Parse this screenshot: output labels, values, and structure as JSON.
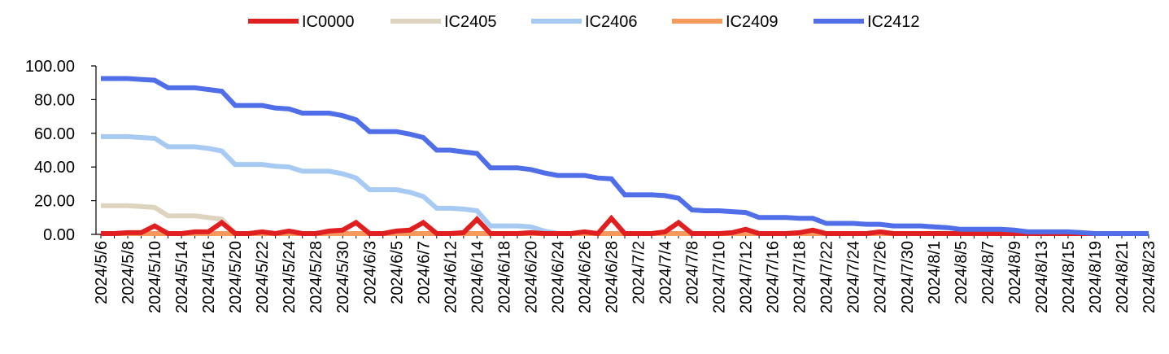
{
  "chart_data": {
    "type": "line",
    "title": "",
    "xlabel": "",
    "ylabel": "",
    "ylim": [
      0,
      100
    ],
    "yticks": [
      "0.00",
      "20.00",
      "40.00",
      "60.00",
      "80.00",
      "100.00"
    ],
    "grid": false,
    "legend_position": "top-center",
    "x": [
      "2024/5/6",
      "2024/5/7",
      "2024/5/8",
      "2024/5/9",
      "2024/5/10",
      "2024/5/13",
      "2024/5/14",
      "2024/5/15",
      "2024/5/16",
      "2024/5/17",
      "2024/5/20",
      "2024/5/21",
      "2024/5/22",
      "2024/5/23",
      "2024/5/24",
      "2024/5/27",
      "2024/5/28",
      "2024/5/29",
      "2024/5/30",
      "2024/5/31",
      "2024/6/3",
      "2024/6/4",
      "2024/6/5",
      "2024/6/6",
      "2024/6/7",
      "2024/6/11",
      "2024/6/12",
      "2024/6/13",
      "2024/6/14",
      "2024/6/17",
      "2024/6/18",
      "2024/6/19",
      "2024/6/20",
      "2024/6/21",
      "2024/6/24",
      "2024/6/25",
      "2024/6/26",
      "2024/6/27",
      "2024/6/28",
      "2024/7/1",
      "2024/7/2",
      "2024/7/3",
      "2024/7/4",
      "2024/7/5",
      "2024/7/8",
      "2024/7/9",
      "2024/7/10",
      "2024/7/11",
      "2024/7/12",
      "2024/7/15",
      "2024/7/16",
      "2024/7/17",
      "2024/7/18",
      "2024/7/19",
      "2024/7/22",
      "2024/7/23",
      "2024/7/24",
      "2024/7/25",
      "2024/7/26",
      "2024/7/29",
      "2024/7/30",
      "2024/7/31",
      "2024/8/1",
      "2024/8/2",
      "2024/8/5",
      "2024/8/6",
      "2024/8/7",
      "2024/8/8",
      "2024/8/9",
      "2024/8/12",
      "2024/8/13",
      "2024/8/14",
      "2024/8/15",
      "2024/8/16",
      "2024/8/19",
      "2024/8/20",
      "2024/8/21",
      "2024/8/22",
      "2024/8/23"
    ],
    "xtick_labels": [
      "2024/5/6",
      "2024/5/8",
      "2024/5/10",
      "2024/5/14",
      "2024/5/16",
      "2024/5/20",
      "2024/5/22",
      "2024/5/24",
      "2024/5/28",
      "2024/5/30",
      "2024/6/3",
      "2024/6/5",
      "2024/6/7",
      "2024/6/12",
      "2024/6/14",
      "2024/6/18",
      "2024/6/20",
      "2024/6/24",
      "2024/6/26",
      "2024/6/28",
      "2024/7/2",
      "2024/7/4",
      "2024/7/8",
      "2024/7/10",
      "2024/7/12",
      "2024/7/16",
      "2024/7/18",
      "2024/7/22",
      "2024/7/24",
      "2024/7/26",
      "2024/7/30",
      "2024/8/1",
      "2024/8/5",
      "2024/8/7",
      "2024/8/9",
      "2024/8/13",
      "2024/8/15",
      "2024/8/19",
      "2024/8/21",
      "2024/8/23"
    ],
    "series": [
      {
        "name": "IC0000",
        "color": "#e02020",
        "values": [
          0.5,
          0.5,
          1,
          1,
          5,
          0.5,
          0.5,
          1.5,
          1.5,
          7,
          0.5,
          0.5,
          1.5,
          0.5,
          2,
          0.5,
          0.5,
          2,
          2.5,
          7,
          0.5,
          0.5,
          2,
          2.5,
          7,
          0.5,
          0.5,
          1,
          9,
          0.5,
          0.5,
          0.5,
          1,
          0.5,
          0.5,
          0.5,
          1.5,
          0.5,
          9.5,
          0.5,
          0.5,
          0.5,
          1.5,
          7,
          0.5,
          0.5,
          0.5,
          1,
          3,
          0.5,
          0.5,
          0.5,
          1,
          2.5,
          0.5,
          0.5,
          0.5,
          0.5,
          1.5,
          0.5,
          0.5,
          0.5,
          0.5,
          0.5,
          0.5,
          0.5,
          0.5,
          0.5,
          0.5,
          0.5,
          0.5,
          0.5,
          0.5,
          0.5,
          0.5,
          0.5,
          0.5,
          0.5,
          0.5
        ]
      },
      {
        "name": "IC2405",
        "color": "#ddd3be",
        "values": [
          17,
          17,
          17,
          16.5,
          16,
          11,
          11,
          11,
          10,
          9,
          0.5,
          0.5,
          0.5,
          0.5,
          0.5,
          0.5,
          0.5,
          0.5,
          0.5,
          0.5,
          0.5,
          0.5,
          0.5,
          0.5,
          0.5,
          0.5,
          0.5,
          0.5,
          0.5,
          0.5,
          0.5,
          0.5,
          0.5,
          0.5,
          0.5,
          0.5,
          0.5,
          0.5,
          0.5,
          0.5,
          0.5,
          0.5,
          0.5,
          0.5,
          0.5,
          0.5,
          0.5,
          0.5,
          0.5,
          0.5,
          0.5,
          0.5,
          0.5,
          0.5,
          0.5,
          0.5,
          0.5,
          0.5,
          0.5,
          0.5,
          0.5,
          0.5,
          0.5,
          0.5,
          0.5,
          0.5,
          0.5,
          0.5,
          0.5,
          0.5,
          0.5,
          0.5,
          0.5,
          0.5,
          0.5,
          0.5,
          0.5,
          0.5,
          0.5
        ]
      },
      {
        "name": "IC2406",
        "color": "#a7caf3",
        "values": [
          58,
          58,
          58,
          57.5,
          57,
          52,
          52,
          52,
          51,
          49.5,
          41.5,
          41.5,
          41.5,
          40.5,
          40,
          37.5,
          37.5,
          37.5,
          36,
          33.5,
          26.5,
          26.5,
          26.5,
          25,
          22.5,
          15.5,
          15.5,
          15,
          14,
          5,
          5,
          5,
          4.5,
          2,
          0.5,
          0.5,
          0.5,
          0.5,
          0.5,
          0.5,
          0.5,
          0.5,
          0.5,
          0.5,
          0.5,
          0.5,
          0.5,
          0.5,
          0.5,
          0.5,
          0.5,
          0.5,
          0.5,
          0.5,
          0.5,
          0.5,
          0.5,
          0.5,
          0.5,
          0.5,
          0.5,
          0.5,
          0.5,
          0.5,
          0.5,
          0.5,
          0.5,
          0.5,
          0.5,
          0.5,
          0.5,
          0.5,
          0.5,
          0.5,
          0.5,
          0.5,
          0.5,
          0.5,
          0.5
        ]
      },
      {
        "name": "IC2409",
        "color": "#f59a5d",
        "values": [
          0.5,
          0.5,
          0.5,
          0.5,
          0.5,
          0.5,
          0.5,
          0.5,
          0.5,
          0.5,
          0.5,
          0.5,
          0.5,
          0.5,
          0.5,
          0.5,
          0.5,
          0.5,
          0.5,
          0.5,
          0.5,
          0.5,
          0.5,
          0.5,
          0.5,
          0.5,
          0.5,
          0.5,
          0.5,
          0.5,
          0.5,
          0.5,
          0.5,
          0.5,
          0.5,
          0.5,
          0.5,
          0.5,
          0.5,
          0.5,
          0.5,
          0.5,
          0.5,
          0.5,
          0.5,
          0.5,
          0.5,
          0.5,
          0.5,
          0.5,
          0.5,
          0.5,
          0.5,
          0.5,
          0.5,
          0.5,
          0.5,
          0.5,
          0.5,
          0.5,
          0.5,
          0.5,
          0.5,
          0.5,
          0.5,
          0.5,
          0.5,
          0.5,
          0.5,
          0.5,
          0.5,
          0.5,
          0.5,
          0.5,
          0.5,
          0.5,
          0.5,
          0.5,
          0.5
        ]
      },
      {
        "name": "IC2412",
        "color": "#4f6ee8",
        "values": [
          92.5,
          92.5,
          92.5,
          92,
          91.5,
          87,
          87,
          87,
          86,
          85,
          76.5,
          76.5,
          76.5,
          75,
          74.5,
          72,
          72,
          72,
          70.5,
          68,
          61,
          61,
          61,
          59.5,
          57.5,
          50,
          50,
          49,
          48,
          39.5,
          39.5,
          39.5,
          38.5,
          36.5,
          35,
          35,
          35,
          33.5,
          33,
          23.5,
          23.5,
          23.5,
          23,
          21.5,
          14.5,
          14,
          14,
          13.5,
          13,
          10,
          10,
          10,
          9.5,
          9.5,
          6.5,
          6.5,
          6.5,
          6,
          6,
          5,
          5,
          5,
          4.5,
          4,
          3,
          3,
          3,
          3,
          2.5,
          1.5,
          1.5,
          1.5,
          1.5,
          1,
          0.5,
          0.5,
          0.5,
          0.5,
          0.5
        ]
      }
    ]
  }
}
